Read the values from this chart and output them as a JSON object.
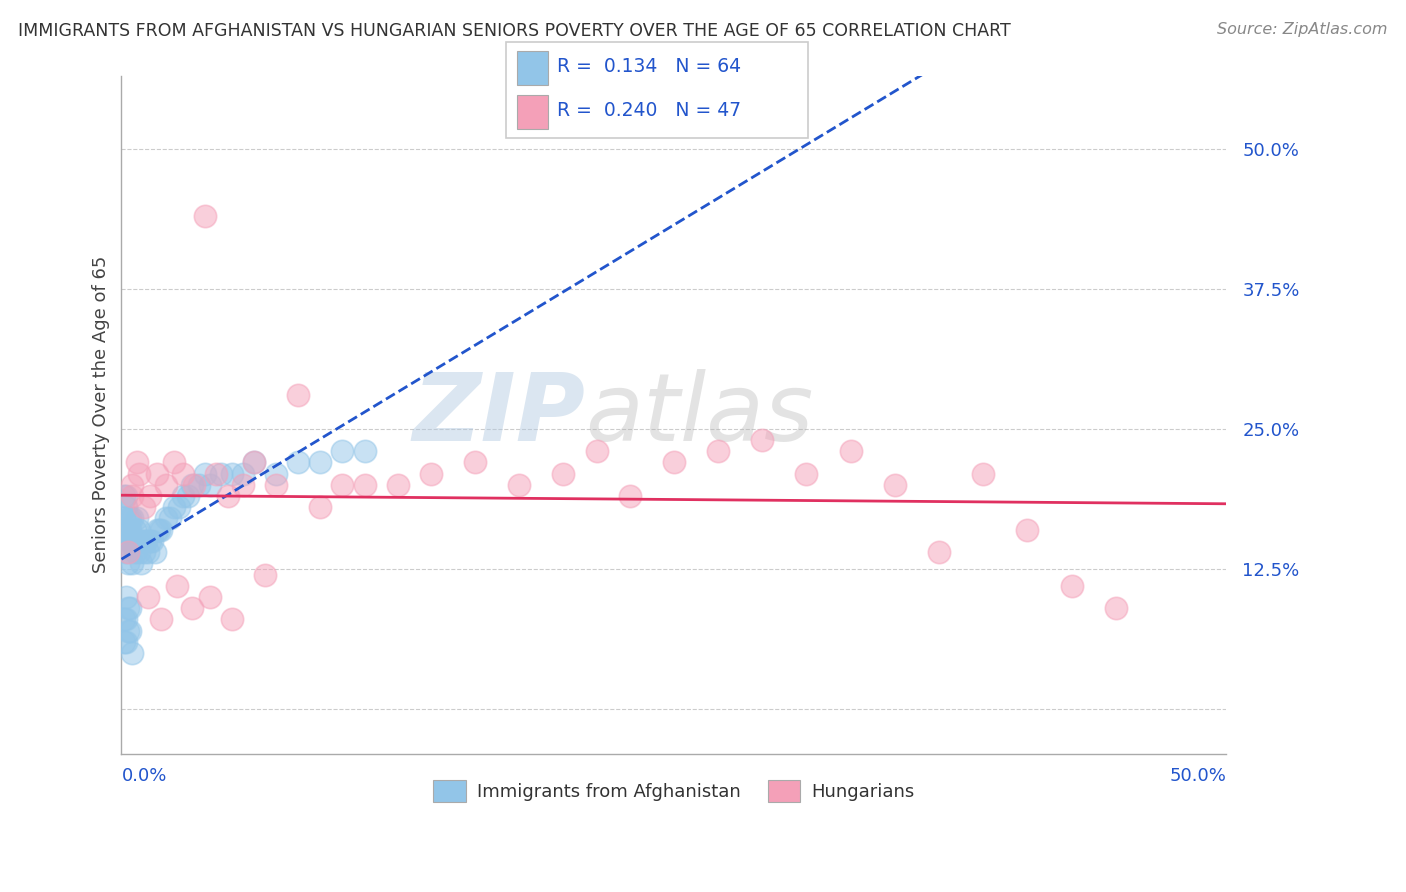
{
  "title": "IMMIGRANTS FROM AFGHANISTAN VS HUNGARIAN SENIORS POVERTY OVER THE AGE OF 65 CORRELATION CHART",
  "source": "Source: ZipAtlas.com",
  "ylabel": "Seniors Poverty Over the Age of 65",
  "legend_label_blue": "Immigrants from Afghanistan",
  "legend_label_pink": "Hungarians",
  "R_blue": 0.134,
  "N_blue": 64,
  "R_pink": 0.24,
  "N_pink": 47,
  "xlim": [
    0.0,
    0.5
  ],
  "ylim": [
    -0.04,
    0.565
  ],
  "yticks": [
    0.0,
    0.125,
    0.25,
    0.375,
    0.5
  ],
  "ytick_labels": [
    "",
    "12.5%",
    "25.0%",
    "37.5%",
    "50.0%"
  ],
  "blue_color": "#92c5e8",
  "pink_color": "#f4a0b8",
  "blue_line_color": "#2255cc",
  "pink_line_color": "#e03060",
  "watermark_zip": "ZIP",
  "watermark_atlas": "atlas",
  "blue_x": [
    0.001,
    0.001,
    0.001,
    0.002,
    0.002,
    0.002,
    0.002,
    0.003,
    0.003,
    0.003,
    0.003,
    0.004,
    0.004,
    0.004,
    0.005,
    0.005,
    0.005,
    0.006,
    0.006,
    0.007,
    0.007,
    0.008,
    0.008,
    0.009,
    0.009,
    0.01,
    0.01,
    0.011,
    0.012,
    0.013,
    0.014,
    0.015,
    0.016,
    0.017,
    0.018,
    0.02,
    0.022,
    0.024,
    0.026,
    0.028,
    0.03,
    0.032,
    0.035,
    0.038,
    0.04,
    0.045,
    0.05,
    0.055,
    0.06,
    0.07,
    0.08,
    0.09,
    0.1,
    0.11,
    0.001,
    0.001,
    0.002,
    0.002,
    0.002,
    0.003,
    0.003,
    0.004,
    0.004,
    0.005
  ],
  "blue_y": [
    0.19,
    0.17,
    0.15,
    0.19,
    0.18,
    0.16,
    0.14,
    0.17,
    0.16,
    0.15,
    0.13,
    0.17,
    0.16,
    0.15,
    0.17,
    0.15,
    0.13,
    0.16,
    0.14,
    0.17,
    0.15,
    0.16,
    0.14,
    0.15,
    0.13,
    0.15,
    0.14,
    0.15,
    0.14,
    0.15,
    0.15,
    0.14,
    0.16,
    0.16,
    0.16,
    0.17,
    0.17,
    0.18,
    0.18,
    0.19,
    0.19,
    0.2,
    0.2,
    0.21,
    0.2,
    0.21,
    0.21,
    0.21,
    0.22,
    0.21,
    0.22,
    0.22,
    0.23,
    0.23,
    0.08,
    0.06,
    0.1,
    0.08,
    0.06,
    0.09,
    0.07,
    0.09,
    0.07,
    0.05
  ],
  "pink_x": [
    0.003,
    0.005,
    0.007,
    0.01,
    0.013,
    0.016,
    0.02,
    0.024,
    0.028,
    0.033,
    0.038,
    0.043,
    0.048,
    0.055,
    0.06,
    0.07,
    0.08,
    0.09,
    0.1,
    0.11,
    0.125,
    0.14,
    0.16,
    0.18,
    0.2,
    0.215,
    0.23,
    0.25,
    0.27,
    0.29,
    0.31,
    0.33,
    0.35,
    0.37,
    0.39,
    0.41,
    0.43,
    0.45,
    0.005,
    0.008,
    0.012,
    0.018,
    0.025,
    0.032,
    0.04,
    0.05,
    0.065
  ],
  "pink_y": [
    0.14,
    0.2,
    0.22,
    0.18,
    0.19,
    0.21,
    0.2,
    0.22,
    0.21,
    0.2,
    0.44,
    0.21,
    0.19,
    0.2,
    0.22,
    0.2,
    0.28,
    0.18,
    0.2,
    0.2,
    0.2,
    0.21,
    0.22,
    0.2,
    0.21,
    0.23,
    0.19,
    0.22,
    0.23,
    0.24,
    0.21,
    0.23,
    0.2,
    0.14,
    0.21,
    0.16,
    0.11,
    0.09,
    0.19,
    0.21,
    0.1,
    0.08,
    0.11,
    0.09,
    0.1,
    0.08,
    0.12
  ]
}
